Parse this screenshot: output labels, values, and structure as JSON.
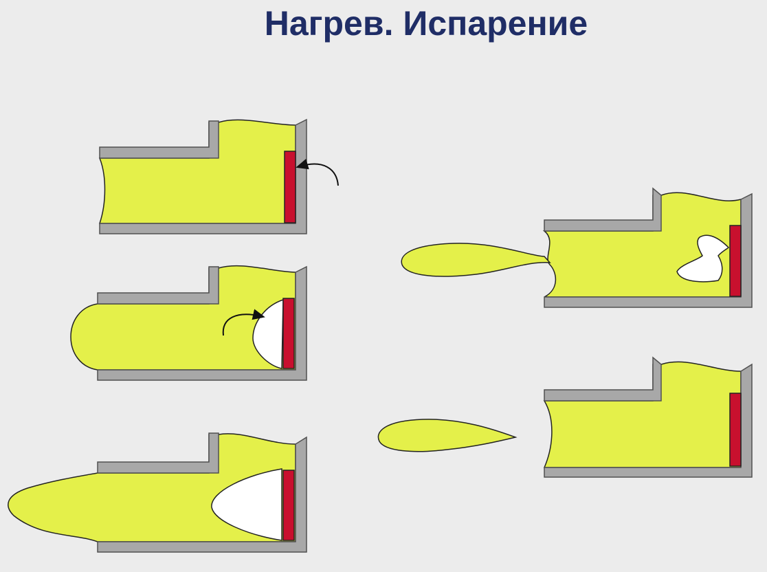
{
  "title": "Нагрев. Испарение",
  "colors": {
    "background": "#ececec",
    "title": "#1f2d66",
    "liquid": "#e4f04a",
    "wall": "#a8a8a8",
    "wall_edge": "#505050",
    "heater": "#c8102e",
    "outline": "#222222"
  },
  "stages": [
    {
      "id": "stage-1",
      "description_shown": false
    },
    {
      "id": "stage-2",
      "description_shown": false
    },
    {
      "id": "stage-3",
      "description_shown": false
    },
    {
      "id": "stage-4",
      "description_shown": false
    },
    {
      "id": "stage-5",
      "description_shown": false
    }
  ]
}
